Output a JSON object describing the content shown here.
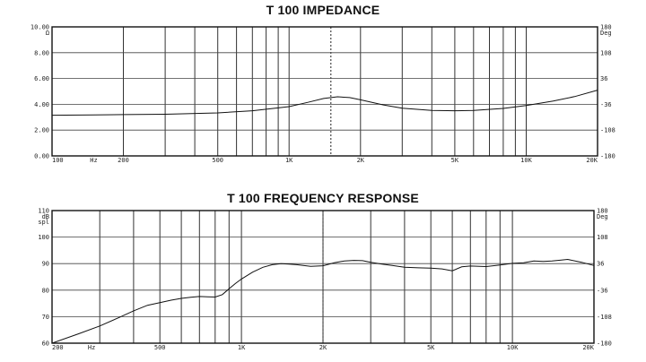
{
  "chart_data": [
    {
      "type": "line",
      "title": "T 100  IMPEDANCE",
      "x_scale": "log",
      "xlim": [
        100,
        20000
      ],
      "ylim": [
        0,
        10
      ],
      "y_unit": "Ω",
      "right_unit": "Deg",
      "x_tick_labels": [
        {
          "v": 100,
          "t": "100"
        },
        {
          "v": 150,
          "t": "Hz"
        },
        {
          "v": 200,
          "t": "200"
        },
        {
          "v": 500,
          "t": "500"
        },
        {
          "v": 1000,
          "t": "1K"
        },
        {
          "v": 2000,
          "t": "2K"
        },
        {
          "v": 5000,
          "t": "5K"
        },
        {
          "v": 10000,
          "t": "10K"
        },
        {
          "v": 20000,
          "t": "20K"
        }
      ],
      "x_grid": [
        200,
        300,
        400,
        500,
        600,
        700,
        800,
        900,
        1000,
        2000,
        3000,
        4000,
        5000,
        6000,
        7000,
        8000,
        9000,
        10000
      ],
      "dashed_x": 1500,
      "y_ticks": [
        {
          "v": 0,
          "t": "0.00"
        },
        {
          "v": 2,
          "t": "2.00"
        },
        {
          "v": 4,
          "t": "4.00"
        },
        {
          "v": 6,
          "t": "6.00"
        },
        {
          "v": 8,
          "t": "8.00"
        },
        {
          "v": 10,
          "t": "10.00"
        }
      ],
      "right_ticks": [
        {
          "v": 0,
          "t": "-180"
        },
        {
          "v": 2,
          "t": "-108"
        },
        {
          "v": 4,
          "t": "-36"
        },
        {
          "v": 6,
          "t": "36"
        },
        {
          "v": 8,
          "t": "108"
        },
        {
          "v": 10,
          "t": "180"
        }
      ],
      "series": [
        {
          "x": [
            100,
            150,
            200,
            300,
            500,
            700,
            1000,
            1200,
            1400,
            1600,
            1800,
            2000,
            2500,
            3000,
            4000,
            5000,
            6000,
            8000,
            10000,
            13000,
            16000,
            20000
          ],
          "y": [
            3.15,
            3.18,
            3.2,
            3.23,
            3.33,
            3.5,
            3.82,
            4.15,
            4.45,
            4.58,
            4.52,
            4.35,
            3.95,
            3.7,
            3.52,
            3.5,
            3.53,
            3.68,
            3.9,
            4.25,
            4.6,
            5.1
          ]
        }
      ]
    },
    {
      "type": "line",
      "title": "T 100  FREQUENCY RESPONSE",
      "x_scale": "log",
      "xlim": [
        200,
        20000
      ],
      "ylim": [
        60,
        110
      ],
      "y_unit": "dB spl",
      "right_unit": "Deg",
      "x_tick_labels": [
        {
          "v": 200,
          "t": "200"
        },
        {
          "v": 280,
          "t": "Hz"
        },
        {
          "v": 500,
          "t": "500"
        },
        {
          "v": 1000,
          "t": "1K"
        },
        {
          "v": 2000,
          "t": "2K"
        },
        {
          "v": 5000,
          "t": "5K"
        },
        {
          "v": 10000,
          "t": "10K"
        },
        {
          "v": 20000,
          "t": "20K"
        }
      ],
      "x_grid": [
        300,
        400,
        500,
        600,
        700,
        800,
        900,
        1000,
        2000,
        3000,
        4000,
        5000,
        6000,
        7000,
        8000,
        9000,
        10000
      ],
      "dashed_x": 2000,
      "y_ticks": [
        {
          "v": 60,
          "t": "60"
        },
        {
          "v": 70,
          "t": "70"
        },
        {
          "v": 80,
          "t": "80"
        },
        {
          "v": 90,
          "t": "90"
        },
        {
          "v": 100,
          "t": "100"
        },
        {
          "v": 110,
          "t": "110"
        }
      ],
      "right_ticks": [
        {
          "v": 60,
          "t": "-180"
        },
        {
          "v": 70,
          "t": "-108"
        },
        {
          "v": 80,
          "t": "-36"
        },
        {
          "v": 90,
          "t": "36"
        },
        {
          "v": 100,
          "t": "108"
        },
        {
          "v": 110,
          "t": "180"
        }
      ],
      "series": [
        {
          "x": [
            200,
            250,
            300,
            350,
            400,
            450,
            500,
            550,
            600,
            650,
            700,
            750,
            800,
            850,
            900,
            950,
            1000,
            1100,
            1200,
            1300,
            1400,
            1500,
            1600,
            1800,
            2000,
            2200,
            2400,
            2600,
            2800,
            3000,
            3300,
            3600,
            4000,
            4500,
            5000,
            5500,
            6000,
            6500,
            7000,
            8000,
            9000,
            10000,
            11000,
            12000,
            13000,
            14000,
            15000,
            16000,
            18000,
            20000
          ],
          "y": [
            60,
            63.5,
            66.5,
            69.5,
            72.2,
            74.3,
            75.3,
            76.2,
            76.9,
            77.3,
            77.6,
            77.5,
            77.4,
            78.3,
            80.5,
            82.5,
            84.2,
            86.8,
            88.6,
            89.6,
            90,
            89.8,
            89.6,
            89,
            89.2,
            90.3,
            91,
            91.2,
            91.1,
            90.5,
            89.8,
            89.3,
            88.6,
            88.4,
            88.3,
            88,
            87.3,
            88.8,
            89.1,
            88.9,
            89.5,
            90.1,
            90.3,
            91,
            90.8,
            91,
            91.3,
            91.6,
            90.5,
            89.3
          ]
        }
      ]
    }
  ]
}
